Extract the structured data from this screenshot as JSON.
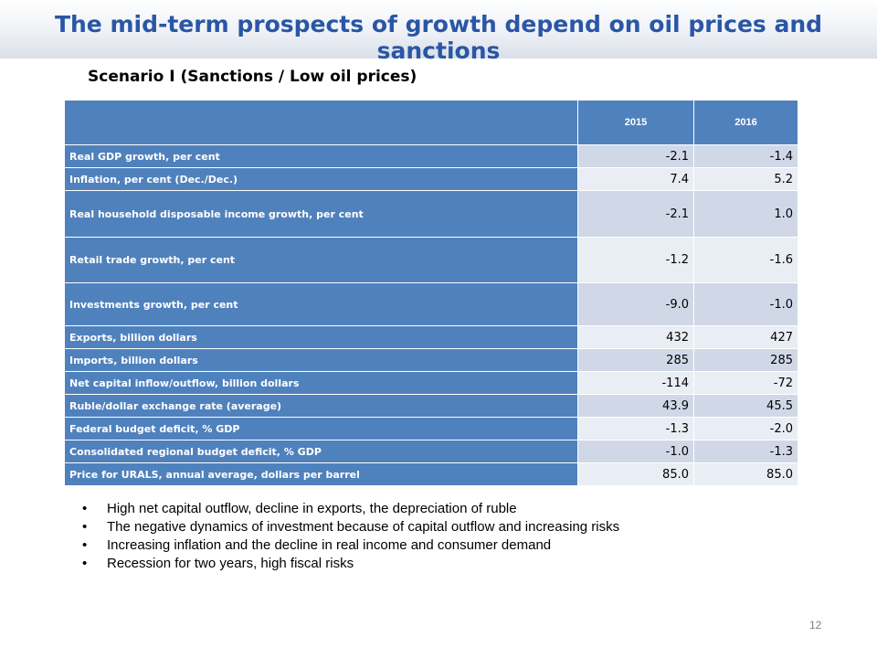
{
  "title": "The mid-term prospects of growth depend on oil prices and sanctions",
  "subtitle": "Scenario I  (Sanctions / Low oil prices)",
  "table": {
    "header": [
      "",
      "2015",
      "2016"
    ],
    "rows": [
      {
        "label": "Real GDP growth, per cent",
        "v2015": "-2.1",
        "v2016": "-1.4"
      },
      {
        "label": "Inflation, per cent (Dec./Dec.)",
        "v2015": "7.4",
        "v2016": "5.2"
      },
      {
        "label": "Real household disposable income growth, per cent",
        "v2015": "-2.1",
        "v2016": "1.0"
      },
      {
        "label": "Retail trade growth, per cent",
        "v2015": "-1.2",
        "v2016": "-1.6"
      },
      {
        "label": "Investments growth, per cent",
        "v2015": "-9.0",
        "v2016": "-1.0"
      },
      {
        "label": "Exports, billion dollars",
        "v2015": "432",
        "v2016": "427"
      },
      {
        "label": "Imports, billion dollars",
        "v2015": "285",
        "v2016": "285"
      },
      {
        "label": "Net  capital inflow/outflow, billion dollars",
        "v2015": "-114",
        "v2016": "-72"
      },
      {
        "label": "Ruble/dollar exchange rate (average)",
        "v2015": "43.9",
        "v2016": "45.5"
      },
      {
        "label": "Federal budget deficit, % GDP",
        "v2015": "-1.3",
        "v2016": "-2.0"
      },
      {
        "label": "Consolidated  regional budget deficit, % GDP",
        "v2015": "-1.0",
        "v2016": "-1.3"
      },
      {
        "label": "Price for URALS, annual average, dollars per barrel",
        "v2015": "85.0",
        "v2016": "85.0"
      }
    ]
  },
  "bullet_char": "•",
  "bullets": [
    "High net capital outflow, decline in exports, the depreciation of ruble",
    "The negative dynamics of investment because of capital outflow and increasing risks",
    "Increasing inflation and the decline in real income and consumer demand",
    "Recession for two years, high fiscal risks"
  ],
  "page_number": "12",
  "colors": {
    "title": "#2a56a6",
    "header_bg": "#4f81bd",
    "row_odd": "#d0d8e8",
    "row_even": "#e9edf4"
  }
}
